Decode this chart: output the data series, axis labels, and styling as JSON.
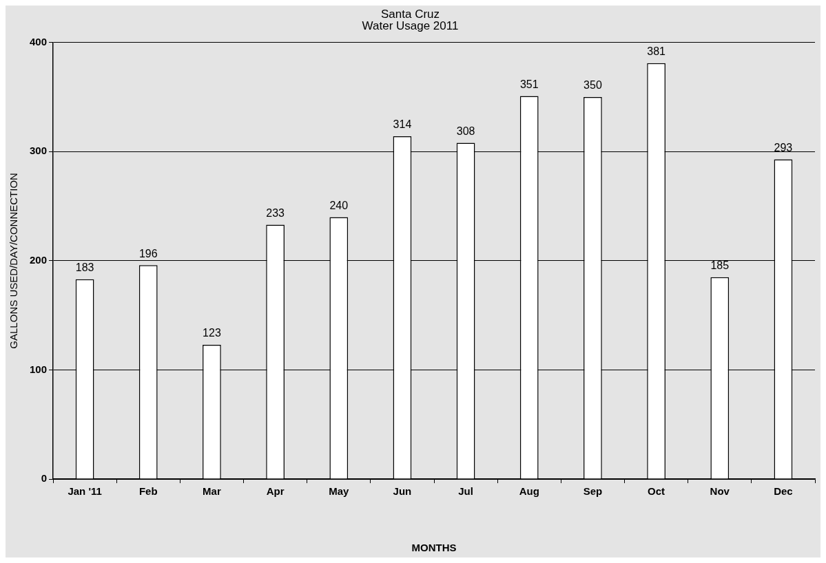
{
  "chart_data": {
    "type": "bar",
    "title": "Santa Cruz",
    "subtitle": "Water Usage 2011",
    "xlabel": "MONTHS",
    "ylabel": "GALLONS USED/DAY/CONNECTION",
    "categories": [
      "Jan '11",
      "Feb",
      "Mar",
      "Apr",
      "May",
      "Jun",
      "Jul",
      "Aug",
      "Sep",
      "Oct",
      "Nov",
      "Dec"
    ],
    "values": [
      183,
      196,
      123,
      233,
      240,
      314,
      308,
      351,
      350,
      381,
      185,
      293
    ],
    "color": "#ffffff",
    "ylim": [
      0,
      400
    ],
    "yticks": [
      0,
      100,
      200,
      300,
      400
    ],
    "grid": "y",
    "data_labels": true,
    "legend": false
  }
}
